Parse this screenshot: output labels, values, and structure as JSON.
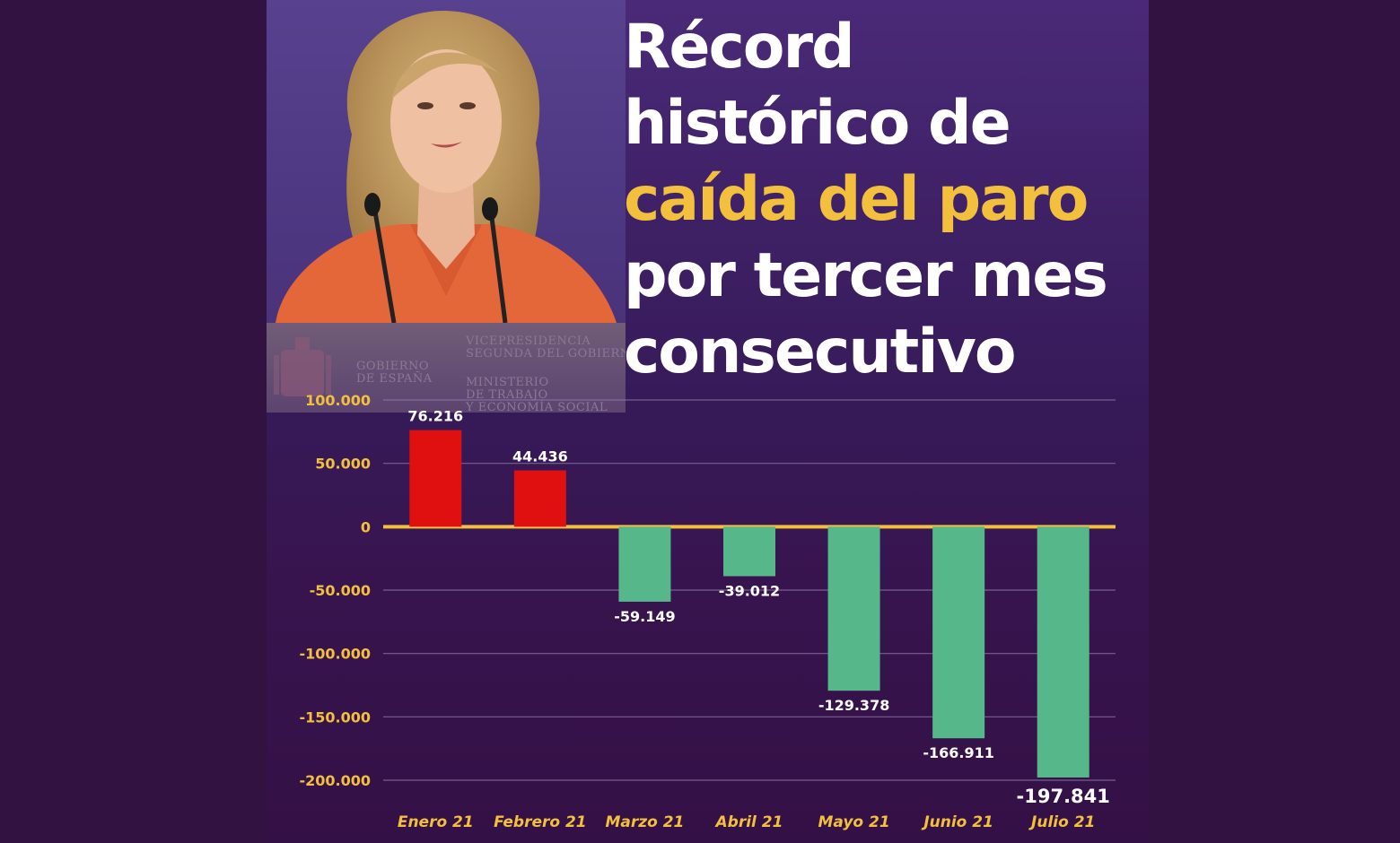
{
  "title": {
    "line1": "Récord",
    "line2": "histórico de",
    "line3": "caída del paro",
    "line4": "por tercer mes",
    "line5": "consecutivo"
  },
  "podium": {
    "gobierno": "GOBIERNO\nDE ESPAÑA",
    "vicepresidencia": "VICEPRESIDENCIA\nSEGUNDA DEL GOBIERNO",
    "ministerio": "MINISTERIO\nDE TRABAJO\nY ECONOMÍA SOCIAL"
  },
  "colors": {
    "accent": "#f2c03c",
    "positive_bar": "#e01010",
    "negative_bar": "#56b88a",
    "background": "#311240"
  },
  "chart_data": {
    "type": "bar",
    "categories": [
      "Enero 21",
      "Febrero 21",
      "Marzo 21",
      "Abril 21",
      "Mayo 21",
      "Junio 21",
      "Julio 21"
    ],
    "values": [
      76216,
      44436,
      -59149,
      -39012,
      -129378,
      -166911,
      -197841
    ],
    "value_labels": [
      "76.216",
      "44.436",
      "-59.149",
      "-39.012",
      "-129.378",
      "-166.911",
      "-197.841"
    ],
    "y_ticks": [
      100000,
      50000,
      0,
      -50000,
      -100000,
      -150000,
      -200000
    ],
    "y_tick_labels": [
      "100.000",
      "50.000",
      "0",
      "-50.000",
      "-100.000",
      "-150.000",
      "-200.000"
    ],
    "ylim": [
      -200000,
      100000
    ],
    "grid": true,
    "title": "",
    "xlabel": "",
    "ylabel": ""
  }
}
